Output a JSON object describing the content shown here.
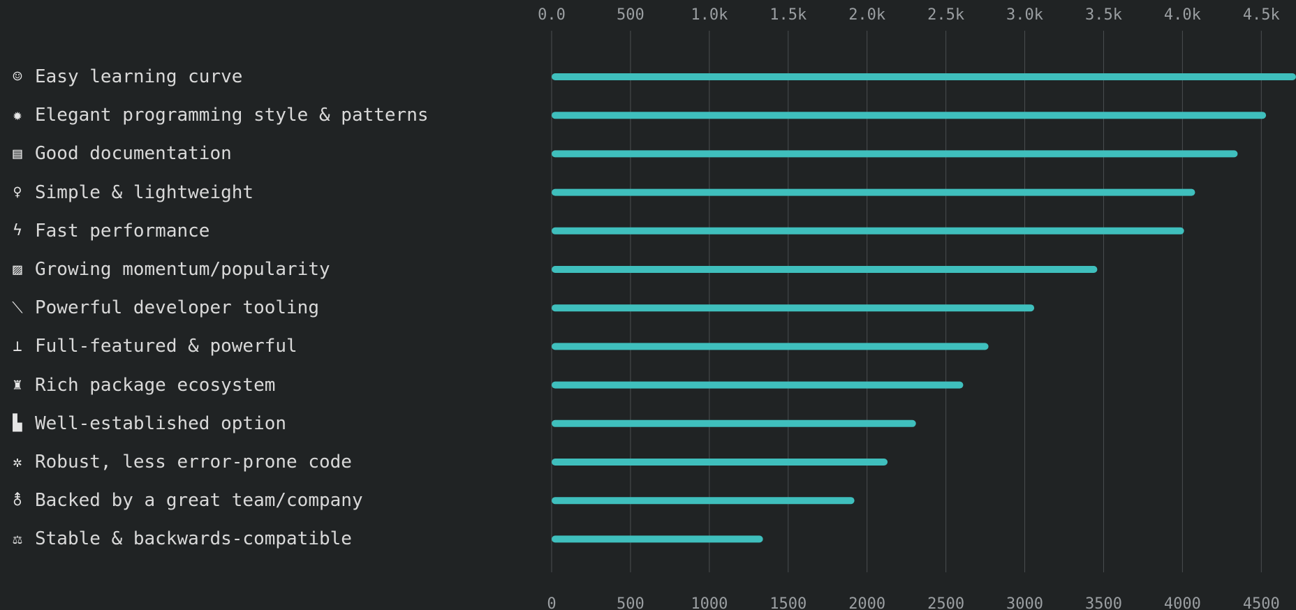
{
  "chart_data": {
    "type": "bar",
    "orientation": "horizontal",
    "categories": [
      "Easy learning curve",
      "Elegant programming style & patterns",
      "Good documentation",
      "Simple & lightweight",
      "Fast performance",
      "Growing momentum/popularity",
      "Powerful developer tooling",
      "Full-featured & powerful",
      "Rich package ecosystem",
      "Well-established option",
      "Robust, less error-prone code",
      "Backed by a great team/company",
      "Stable & backwards-compatible"
    ],
    "icons": [
      {
        "name": "baby-face-icon",
        "glyph": "☺"
      },
      {
        "name": "gear-icon",
        "glyph": "✹"
      },
      {
        "name": "book-icon",
        "glyph": "▤"
      },
      {
        "name": "bulb-icon",
        "glyph": "♀"
      },
      {
        "name": "lightning-icon",
        "glyph": "ϟ"
      },
      {
        "name": "chart-icon",
        "glyph": "▨"
      },
      {
        "name": "wrench-icon",
        "glyph": "⟍"
      },
      {
        "name": "joystick-icon",
        "glyph": "⊥"
      },
      {
        "name": "gift-icon",
        "glyph": "♜"
      },
      {
        "name": "building-icon",
        "glyph": "▙"
      },
      {
        "name": "virus-icon",
        "glyph": "✲"
      },
      {
        "name": "people-icon",
        "glyph": "⚨"
      },
      {
        "name": "scales-icon",
        "glyph": "⚖"
      }
    ],
    "values": [
      4720,
      4530,
      4350,
      4080,
      4010,
      3460,
      3060,
      2770,
      2610,
      2310,
      2130,
      1920,
      1340
    ],
    "xlim": [
      0,
      4720
    ],
    "top_ticks": [
      {
        "value": 0,
        "label": "0.0"
      },
      {
        "value": 500,
        "label": "500"
      },
      {
        "value": 1000,
        "label": "1.0k"
      },
      {
        "value": 1500,
        "label": "1.5k"
      },
      {
        "value": 2000,
        "label": "2.0k"
      },
      {
        "value": 2500,
        "label": "2.5k"
      },
      {
        "value": 3000,
        "label": "3.0k"
      },
      {
        "value": 3500,
        "label": "3.5k"
      },
      {
        "value": 4000,
        "label": "4.0k"
      },
      {
        "value": 4500,
        "label": "4.5k"
      }
    ],
    "bottom_ticks": [
      {
        "value": 0,
        "label": "0"
      },
      {
        "value": 500,
        "label": "500"
      },
      {
        "value": 1000,
        "label": "1000"
      },
      {
        "value": 1500,
        "label": "1500"
      },
      {
        "value": 2000,
        "label": "2000"
      },
      {
        "value": 2500,
        "label": "2500"
      },
      {
        "value": 3000,
        "label": "3000"
      },
      {
        "value": 3500,
        "label": "3500"
      },
      {
        "value": 4000,
        "label": "4000"
      },
      {
        "value": 4500,
        "label": "4500"
      }
    ],
    "grid": true,
    "colors": {
      "bar": "#3fbfbd",
      "grid": "#4a4e50",
      "tick_text": "#9b9fa2",
      "label_text": "#d9d9d9",
      "background": "#202324"
    }
  }
}
